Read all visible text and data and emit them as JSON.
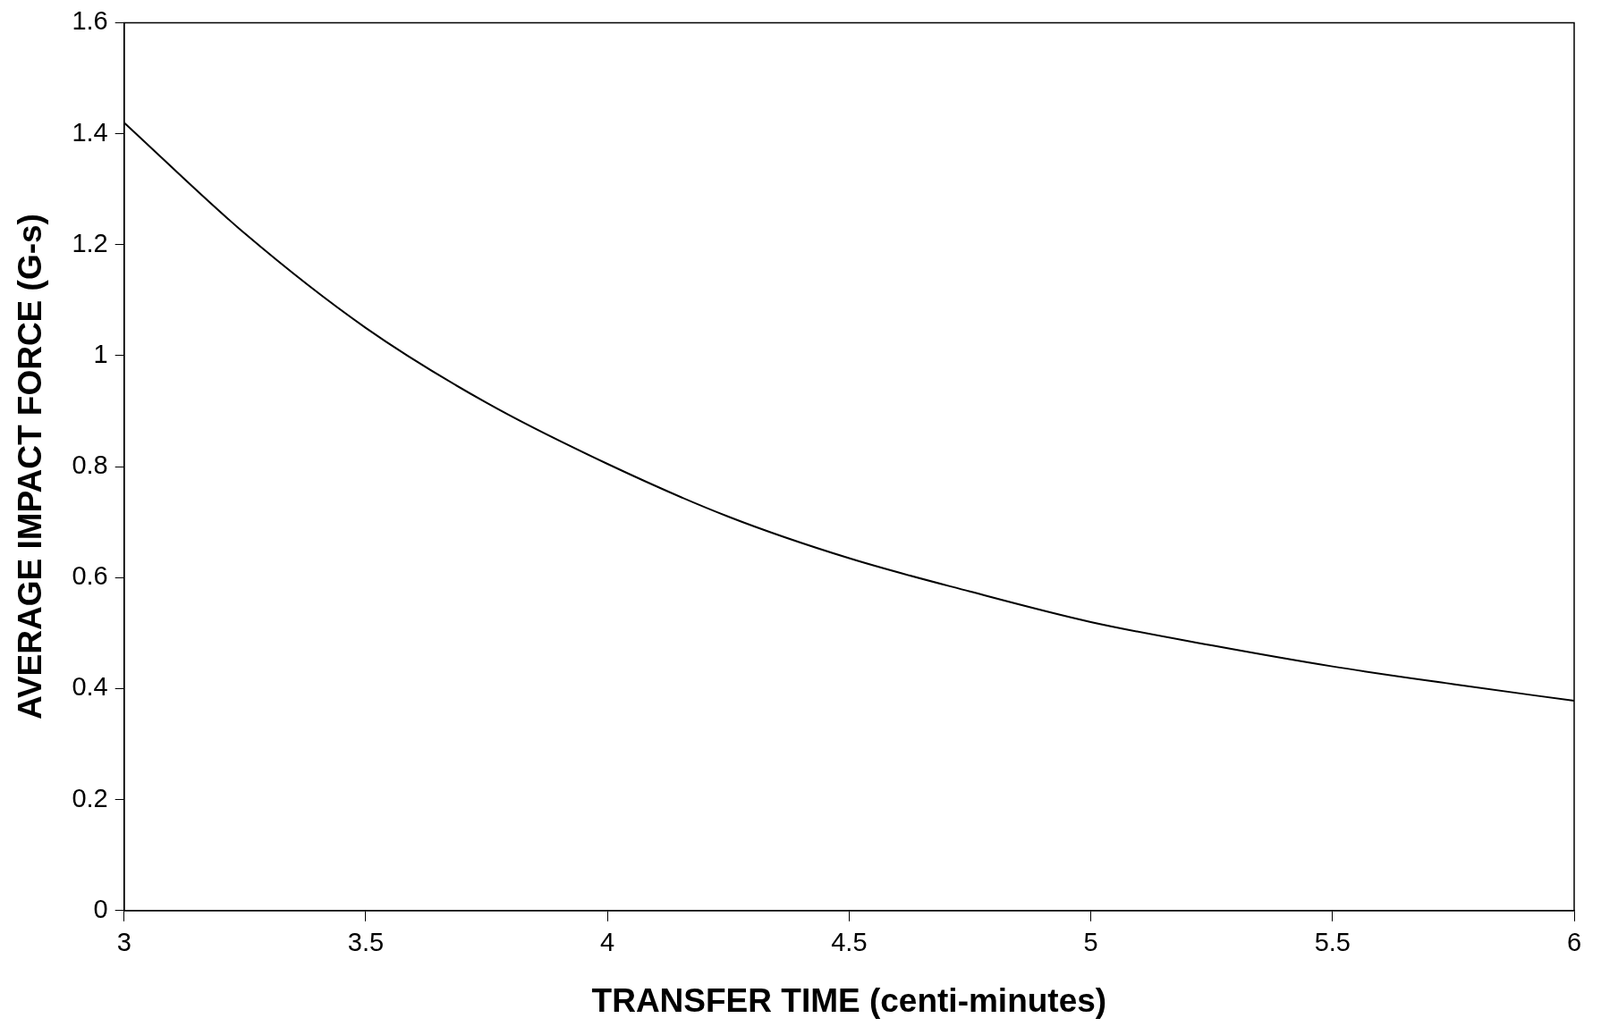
{
  "chart_data": {
    "type": "line",
    "xlabel": "TRANSFER TIME (centi-minutes)",
    "ylabel": "AVERAGE IMPACT FORCE (G-s)",
    "x": [
      3,
      3.25,
      3.5,
      3.75,
      4,
      4.25,
      4.5,
      4.75,
      5,
      5.25,
      5.5,
      5.75,
      6
    ],
    "series": [
      {
        "color": "#000000",
        "values": [
          1.42,
          1.22,
          1.05,
          0.915,
          0.805,
          0.71,
          0.635,
          0.575,
          0.52,
          0.478,
          0.44,
          0.408,
          0.378
        ]
      }
    ],
    "xlim": [
      3,
      6
    ],
    "xticks": [
      3,
      3.5,
      4,
      4.5,
      5,
      5.5,
      6
    ],
    "ylim": [
      0,
      1.6
    ],
    "yticks": [
      0,
      0.2,
      0.4,
      0.6,
      0.8,
      1,
      1.2,
      1.4,
      1.6
    ],
    "grid": false,
    "legend": false,
    "marker": "none",
    "line_style": "solid"
  }
}
